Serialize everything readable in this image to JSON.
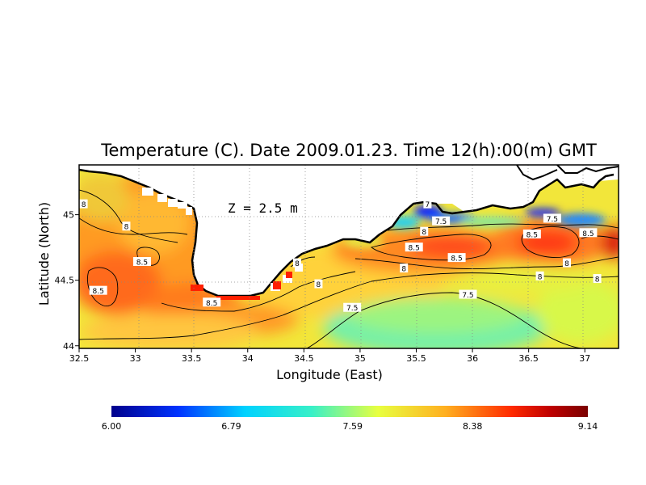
{
  "title": "Temperature (C). Date 2009.01.23. Time 12(h):00(m) GMT",
  "depth_label": "Z = 2.5 m",
  "x_axis": {
    "label": "Longitude (East)",
    "range": [
      32.5,
      37.3
    ],
    "ticks": [
      {
        "value": 32.5,
        "label": "32.5"
      },
      {
        "value": 33,
        "label": "33"
      },
      {
        "value": 33.5,
        "label": "33.5"
      },
      {
        "value": 34,
        "label": "34"
      },
      {
        "value": 34.5,
        "label": "34.5"
      },
      {
        "value": 35,
        "label": "35"
      },
      {
        "value": 35.5,
        "label": "35.5"
      },
      {
        "value": 36,
        "label": "36"
      },
      {
        "value": 36.5,
        "label": "36.5"
      },
      {
        "value": 37,
        "label": "37"
      }
    ]
  },
  "y_axis": {
    "label": "Latitude (North)",
    "range": [
      43.98,
      45.38
    ],
    "ticks": [
      {
        "value": 44,
        "label": "44"
      },
      {
        "value": 44.5,
        "label": "44.5"
      },
      {
        "value": 45,
        "label": "45"
      }
    ]
  },
  "colorbar": {
    "min": 6.0,
    "max": 9.14,
    "labels": [
      "6.00",
      "6.79",
      "7.59",
      "8.38",
      "9.14"
    ],
    "label_values": [
      6.0,
      6.79,
      7.59,
      8.38,
      9.14
    ],
    "colors": [
      "#00008c",
      "#0033ff",
      "#00d2ff",
      "#38f0c8",
      "#e8ff40",
      "#ffb020",
      "#ff2a00",
      "#c00000",
      "#7a0000"
    ]
  },
  "contour_labels": [
    {
      "text": "8",
      "lon": 32.54,
      "lat": 45.08
    },
    {
      "text": "8",
      "lon": 32.92,
      "lat": 44.91
    },
    {
      "text": "8.5",
      "lon": 33.06,
      "lat": 44.64
    },
    {
      "text": "8.5",
      "lon": 32.67,
      "lat": 44.42
    },
    {
      "text": "8.5",
      "lon": 33.68,
      "lat": 44.33
    },
    {
      "text": "8",
      "lon": 34.44,
      "lat": 44.63
    },
    {
      "text": "8",
      "lon": 34.63,
      "lat": 44.47
    },
    {
      "text": "7",
      "lon": 35.6,
      "lat": 45.08
    },
    {
      "text": "7.5",
      "lon": 35.72,
      "lat": 44.95
    },
    {
      "text": "8",
      "lon": 35.57,
      "lat": 44.87
    },
    {
      "text": "8.5",
      "lon": 35.48,
      "lat": 44.75
    },
    {
      "text": "8.5",
      "lon": 35.86,
      "lat": 44.67
    },
    {
      "text": "8",
      "lon": 35.39,
      "lat": 44.59
    },
    {
      "text": "7.5",
      "lon": 35.96,
      "lat": 44.39
    },
    {
      "text": "7.5",
      "lon": 34.93,
      "lat": 44.29
    },
    {
      "text": "8.5",
      "lon": 36.53,
      "lat": 44.85
    },
    {
      "text": "7.5",
      "lon": 36.71,
      "lat": 44.97
    },
    {
      "text": "8.5",
      "lon": 37.03,
      "lat": 44.86
    },
    {
      "text": "8",
      "lon": 36.84,
      "lat": 44.63
    },
    {
      "text": "8",
      "lon": 36.6,
      "lat": 44.53
    },
    {
      "text": "8",
      "lon": 37.11,
      "lat": 44.51
    }
  ]
}
